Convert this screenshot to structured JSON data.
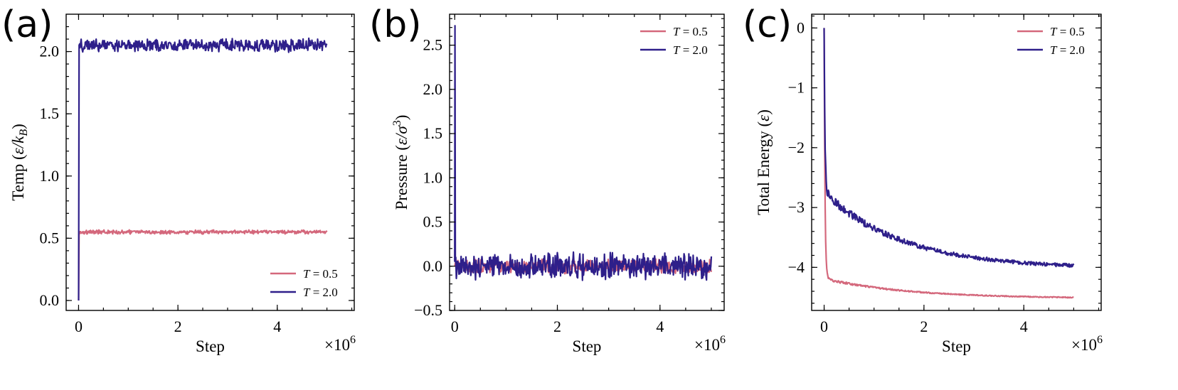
{
  "panels": [
    {
      "letter": "(a)",
      "ylabel_prefix": "Temp (",
      "ylabel_unit": "ε/k",
      "ylabel_sub": "B",
      "ylabel_suffix": ")"
    },
    {
      "letter": "(b)",
      "ylabel_prefix": "Pressure (",
      "ylabel_unit": "ε/σ",
      "ylabel_sup": "3",
      "ylabel_suffix": ")"
    },
    {
      "letter": "(c)",
      "ylabel_prefix": "Total Energy (",
      "ylabel_unit": "ε",
      "ylabel_suffix": ")"
    }
  ],
  "colors": {
    "low_T": "#d4687c",
    "high_T": "#2e1f8a"
  },
  "chart_data": [
    {
      "type": "line",
      "xlabel": "Step",
      "x_multiplier": "×10",
      "x_multiplier_exp": "6",
      "xlim": [
        -0.25,
        5.55
      ],
      "ylim": [
        -0.08,
        2.3
      ],
      "xticks": [
        0,
        2,
        4
      ],
      "xtick_labels": [
        "0",
        "2",
        "4"
      ],
      "yticks": [
        0.0,
        0.5,
        1.0,
        1.5,
        2.0
      ],
      "ytick_labels": [
        "0.0",
        "0.5",
        "1.0",
        "1.5",
        "2.0"
      ],
      "legend_position": "lower-right",
      "series": [
        {
          "name_var": "T",
          "name_value": " = 0.5",
          "color": "#d4687c",
          "start": 0.0,
          "level": 0.55,
          "noise": 0.012,
          "decay": 0,
          "tail": 0,
          "spike": null
        },
        {
          "name_var": "T",
          "name_value": " = 2.0",
          "color": "#2e1f8a",
          "start": 0.0,
          "level": 2.05,
          "noise": 0.04,
          "decay": 0,
          "tail": 0,
          "spike": null
        }
      ]
    },
    {
      "type": "line",
      "xlabel": "Step",
      "x_multiplier": "×10",
      "x_multiplier_exp": "6",
      "xlim": [
        -0.1,
        5.25
      ],
      "ylim": [
        -0.5,
        2.85
      ],
      "xticks": [
        0,
        2,
        4
      ],
      "xtick_labels": [
        "0",
        "2",
        "4"
      ],
      "yticks": [
        -0.5,
        0.0,
        0.5,
        1.0,
        1.5,
        2.0,
        2.5
      ],
      "ytick_labels": [
        "−0.5",
        "0.0",
        "0.5",
        "1.0",
        "1.5",
        "2.0",
        "2.5"
      ],
      "legend_position": "top-right",
      "series": [
        {
          "name_var": "T",
          "name_value": " = 0.5",
          "color": "#d4687c",
          "start": 0.0,
          "level": 0.0,
          "noise": 0.06,
          "decay": 0,
          "tail": 0,
          "spike": null
        },
        {
          "name_var": "T",
          "name_value": " = 2.0",
          "color": "#2e1f8a",
          "start": 2.72,
          "level": 0.0,
          "noise": 0.11,
          "decay": 0,
          "tail": 0,
          "spike": 2.72
        }
      ]
    },
    {
      "type": "line",
      "xlabel": "Step",
      "x_multiplier": "×10",
      "x_multiplier_exp": "6",
      "xlim": [
        -0.25,
        5.55
      ],
      "ylim": [
        -4.72,
        0.23
      ],
      "xticks": [
        0,
        2,
        4
      ],
      "xtick_labels": [
        "0",
        "2",
        "4"
      ],
      "yticks": [
        0,
        -1,
        -2,
        -3,
        -4
      ],
      "ytick_labels": [
        "0",
        "−1",
        "−2",
        "−3",
        "−4"
      ],
      "legend_position": "top-right",
      "series": [
        {
          "name_var": "T",
          "name_value": " = 0.5",
          "color": "#d4687c",
          "start": 0.0,
          "level": -4.52,
          "noise": 0.008,
          "decay": 1.85,
          "tail": 0.35,
          "spike": null
        },
        {
          "name_var": "T",
          "name_value": " = 2.0",
          "color": "#2e1f8a",
          "start": 0.0,
          "level": -4.02,
          "noise": 0.03,
          "decay": 1.7,
          "tail": 1.35,
          "spike": null
        }
      ]
    }
  ]
}
